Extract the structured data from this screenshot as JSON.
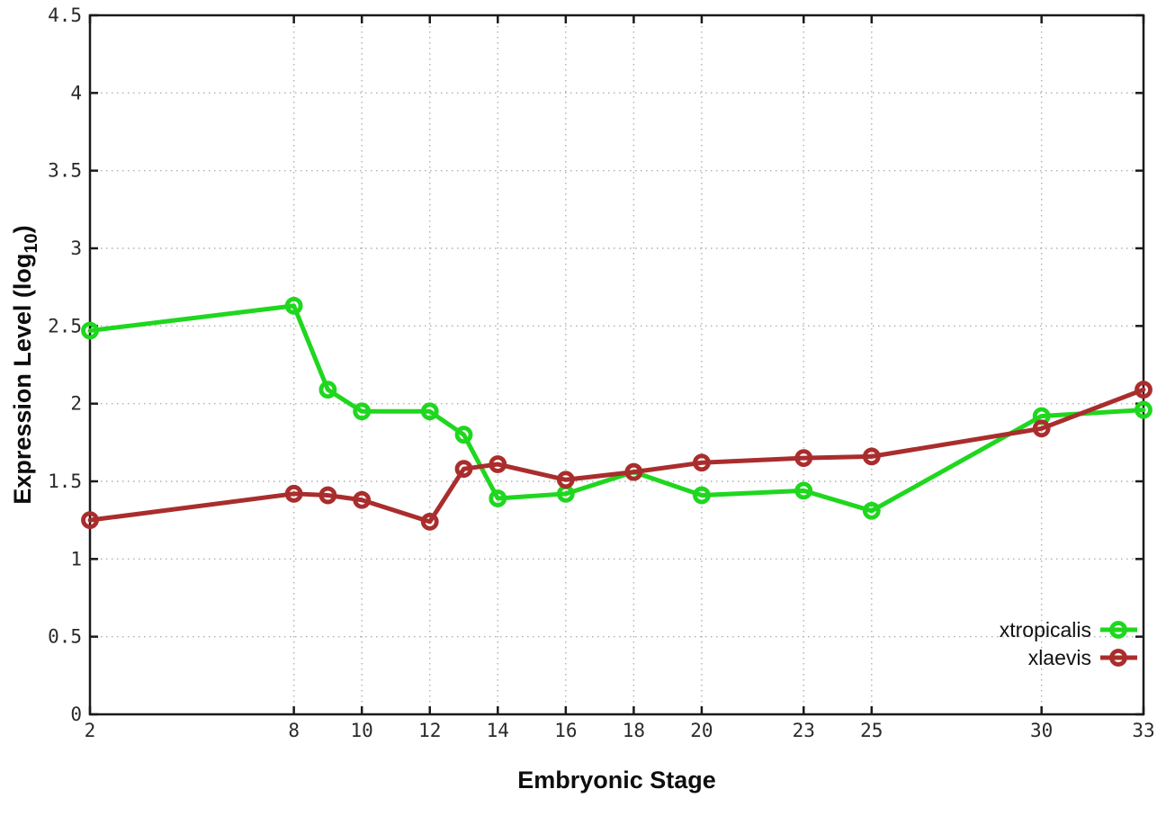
{
  "chart_data": {
    "type": "line",
    "title": "",
    "xlabel": "Embryonic Stage",
    "ylabel": {
      "text": "Expression Level (log",
      "sub": "10",
      "suffix": ")"
    },
    "xlim": [
      2,
      33
    ],
    "ylim": [
      0,
      4.5
    ],
    "x_ticks": [
      2,
      8,
      10,
      12,
      14,
      16,
      18,
      20,
      23,
      25,
      30,
      33
    ],
    "y_ticks": [
      "0",
      "0.5",
      "1",
      "1.5",
      "2",
      "2.5",
      "3",
      "3.5",
      "4",
      "4.5"
    ],
    "grid": true,
    "legend_position": "bottom-right",
    "x": [
      2,
      8,
      9,
      10,
      12,
      13,
      14,
      16,
      18,
      20,
      23,
      25,
      30,
      33
    ],
    "series": [
      {
        "name": "xtropicalis",
        "color": "#1ed71e",
        "values": [
          2.47,
          2.63,
          2.09,
          1.95,
          1.95,
          1.8,
          1.39,
          1.42,
          1.56,
          1.41,
          1.44,
          1.31,
          1.92,
          1.96
        ]
      },
      {
        "name": "xlaevis",
        "color": "#aa2d2d",
        "values": [
          1.25,
          1.42,
          1.41,
          1.38,
          1.24,
          1.58,
          1.61,
          1.51,
          1.56,
          1.62,
          1.65,
          1.66,
          1.84,
          2.09
        ]
      }
    ],
    "colors": {
      "border": "#1a1a1a",
      "grid": "#b0b0b0",
      "tick_label": "#2a2a2a",
      "axis_label": "#0e0e0e",
      "background": "#ffffff"
    }
  }
}
